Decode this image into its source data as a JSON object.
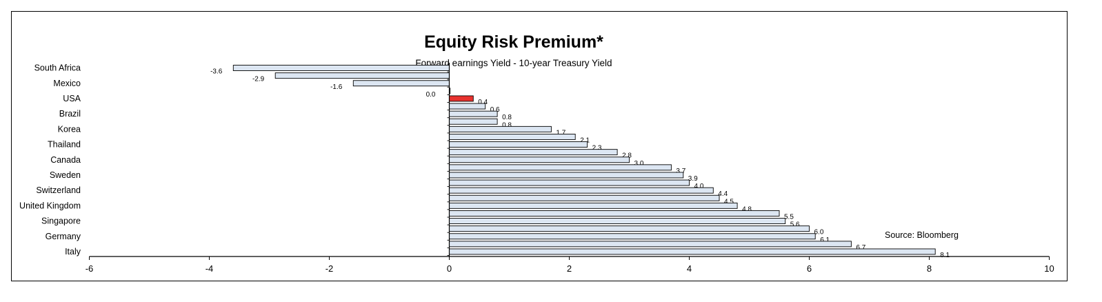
{
  "chart_data": {
    "type": "bar",
    "orientation": "horizontal",
    "title": "Equity Risk Premium*",
    "subtitle": "Forward earnings Yield - 10-year Treasury Yield",
    "source": "Source: Bloomberg",
    "xlim": [
      -6,
      10
    ],
    "xticks": [
      "-6",
      "-4",
      "-2",
      "0",
      "2",
      "4",
      "6",
      "8",
      "10"
    ],
    "values": [
      -3.6,
      -2.9,
      -1.6,
      0.0,
      0.4,
      0.6,
      0.8,
      0.8,
      1.7,
      2.1,
      2.3,
      2.8,
      3.0,
      3.7,
      3.9,
      4.0,
      4.4,
      4.5,
      4.8,
      5.5,
      5.6,
      6.0,
      6.1,
      6.7,
      8.1
    ],
    "value_labels": [
      "-3.6",
      "-2.9",
      "-1.6",
      "0.0",
      "0.4",
      "0.6",
      "0.8",
      "0.8",
      "1.7",
      "2.1",
      "2.3",
      "2.8",
      "3.0",
      "3.7",
      "3.9",
      "4.0",
      "4.4",
      "4.5",
      "4.8",
      "5.5",
      "5.6",
      "6.0",
      "6.1",
      "6.7",
      "8.1"
    ],
    "category_labels": [
      {
        "index": 0,
        "label": "South Africa"
      },
      {
        "index": 2,
        "label": "Mexico"
      },
      {
        "index": 4,
        "label": "USA"
      },
      {
        "index": 6,
        "label": "Brazil"
      },
      {
        "index": 8,
        "label": "Korea"
      },
      {
        "index": 10,
        "label": "Thailand"
      },
      {
        "index": 12,
        "label": "Canada"
      },
      {
        "index": 14,
        "label": "Sweden"
      },
      {
        "index": 16,
        "label": "Switzerland"
      },
      {
        "index": 18,
        "label": "United Kingdom"
      },
      {
        "index": 20,
        "label": "Singapore"
      },
      {
        "index": 22,
        "label": "Germany"
      },
      {
        "index": 24,
        "label": "Italy"
      }
    ],
    "highlight_index": 4,
    "colors": {
      "bar": "#dce6f2",
      "highlight": "#e8322e",
      "outline": "#000000"
    },
    "grid": false,
    "legend": "none"
  }
}
